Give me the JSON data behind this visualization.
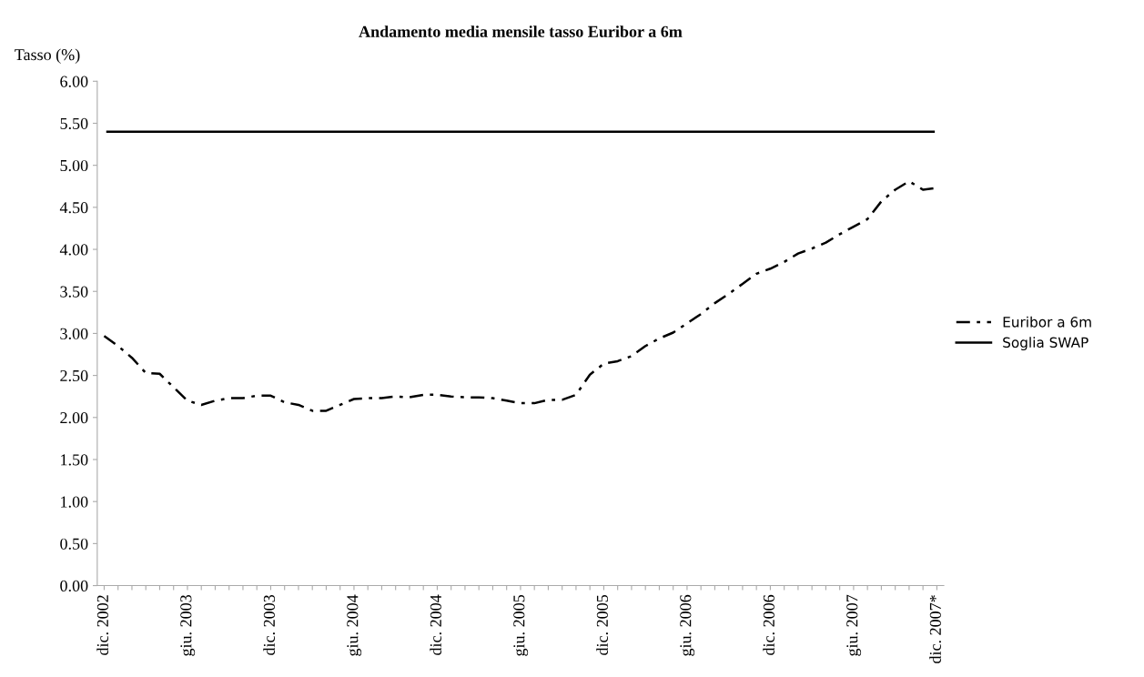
{
  "chart_data": {
    "type": "line",
    "title": "Andamento media mensile tasso Euribor a 6m",
    "ylabel": "Tasso (%)",
    "categories": [
      "dic. 2002",
      null,
      null,
      null,
      null,
      null,
      "giu. 2003",
      null,
      null,
      null,
      null,
      null,
      "dic. 2003",
      null,
      null,
      null,
      null,
      null,
      "giu. 2004",
      null,
      null,
      null,
      null,
      null,
      "dic. 2004",
      null,
      null,
      null,
      null,
      null,
      "giu. 2005",
      null,
      null,
      null,
      null,
      null,
      "dic. 2005",
      null,
      null,
      null,
      null,
      null,
      "giu. 2006",
      null,
      null,
      null,
      null,
      null,
      "dic. 2006",
      null,
      null,
      null,
      null,
      null,
      "giu. 2007",
      null,
      null,
      null,
      null,
      null,
      "dic. 2007*"
    ],
    "series": [
      {
        "name": "Euribor a 6m",
        "color": "#000000",
        "line_style": "dashed",
        "values": [
          2.97,
          2.85,
          2.71,
          2.53,
          2.52,
          2.36,
          2.2,
          2.15,
          2.2,
          2.23,
          2.23,
          2.26,
          2.26,
          2.18,
          2.15,
          2.08,
          2.08,
          2.15,
          2.22,
          2.23,
          2.23,
          2.25,
          2.24,
          2.27,
          2.27,
          2.25,
          2.24,
          2.24,
          2.23,
          2.2,
          2.17,
          2.17,
          2.21,
          2.21,
          2.27,
          2.51,
          2.64,
          2.67,
          2.73,
          2.85,
          2.94,
          3.01,
          3.12,
          3.23,
          3.36,
          3.47,
          3.59,
          3.71,
          3.77,
          3.85,
          3.95,
          4.01,
          4.08,
          4.18,
          4.27,
          4.36,
          4.57,
          4.71,
          4.81,
          4.71,
          4.73
        ]
      }
    ],
    "ref_lines": [
      {
        "axis": "y",
        "value": 5.4,
        "label": "Soglia SWAP",
        "color": "#000000",
        "line_style": "solid"
      }
    ],
    "ylim": [
      0,
      6
    ],
    "yticks": [
      {
        "value": 0,
        "label": "0.00"
      },
      {
        "value": 0.5,
        "label": "0.50"
      },
      {
        "value": 1,
        "label": "1.00"
      },
      {
        "value": 1.5,
        "label": "1.50"
      },
      {
        "value": 2,
        "label": "2.00"
      },
      {
        "value": 2.5,
        "label": "2.50"
      },
      {
        "value": 3,
        "label": "3.00"
      },
      {
        "value": 3.5,
        "label": "3.50"
      },
      {
        "value": 4,
        "label": "4.00"
      },
      {
        "value": 4.5,
        "label": "4.50"
      },
      {
        "value": 5,
        "label": "5.00"
      },
      {
        "value": 5.5,
        "label": "5.50"
      },
      {
        "value": 6,
        "label": "6.00"
      }
    ],
    "grid": false,
    "legend": "right",
    "marker": "none"
  }
}
